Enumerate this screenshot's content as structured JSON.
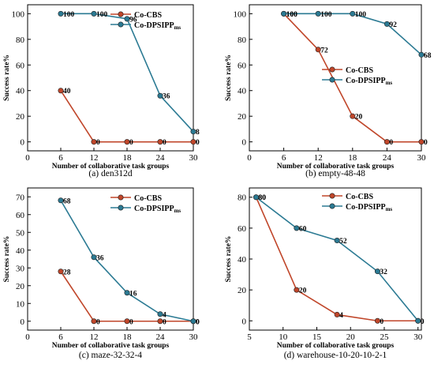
{
  "colors": {
    "co_cbs": "#c0462a",
    "co_dpsipp": "#2b7a93",
    "axis": "#000000"
  },
  "chart_data": [
    {
      "type": "line",
      "caption": "(a) den312d",
      "xlabel": "Number of collaborative task groups",
      "ylabel": "Success rate%",
      "xlim": [
        0,
        30
      ],
      "ylim": [
        -7,
        107
      ],
      "xticks": [
        0,
        6,
        12,
        18,
        24,
        30
      ],
      "yticks": [
        0,
        20,
        40,
        60,
        80,
        100
      ],
      "legend_position": "top-right",
      "series": [
        {
          "name": "Co-CBS",
          "x": [
            6,
            12,
            18,
            24,
            30
          ],
          "values": [
            40,
            0,
            0,
            0,
            0
          ],
          "labels": [
            "40",
            "0",
            "0",
            "0",
            "0"
          ]
        },
        {
          "name": "Co-DPSIPP",
          "name_sub": "ms",
          "x": [
            6,
            12,
            18,
            24,
            30
          ],
          "values": [
            100,
            100,
            96,
            36,
            8
          ],
          "labels": [
            "100",
            "100",
            "96",
            "36",
            "8"
          ]
        }
      ]
    },
    {
      "type": "line",
      "caption": "(b) empty-48-48",
      "xlabel": "Number of collaborative task groups",
      "ylabel": "Success rate%",
      "xlim": [
        0,
        30
      ],
      "ylim": [
        -7,
        107
      ],
      "xticks": [
        0,
        6,
        12,
        18,
        24,
        30
      ],
      "yticks": [
        0,
        20,
        40,
        60,
        80,
        100
      ],
      "legend_position": "center-right",
      "series": [
        {
          "name": "Co-CBS",
          "x": [
            6,
            12,
            18,
            24,
            30
          ],
          "values": [
            100,
            72,
            20,
            0,
            0
          ],
          "labels": [
            "100",
            "72",
            "20",
            "0",
            "0"
          ]
        },
        {
          "name": "Co-DPSIPP",
          "name_sub": "ms",
          "x": [
            6,
            12,
            18,
            24,
            30
          ],
          "values": [
            100,
            100,
            100,
            92,
            68
          ],
          "labels": [
            "100",
            "100",
            "100",
            "92",
            "68"
          ]
        }
      ]
    },
    {
      "type": "line",
      "caption": "(c) maze-32-32-4",
      "xlabel": "Number of collaborative task groups",
      "ylabel": "Success rate%",
      "xlim": [
        0,
        30
      ],
      "ylim": [
        -5,
        75
      ],
      "xticks": [
        0,
        6,
        12,
        18,
        24,
        30
      ],
      "yticks": [
        0,
        10,
        20,
        30,
        40,
        50,
        60,
        70
      ],
      "legend_position": "top-right",
      "series": [
        {
          "name": "Co-CBS",
          "x": [
            6,
            12,
            18,
            24,
            30
          ],
          "values": [
            28,
            0,
            0,
            0,
            0
          ],
          "labels": [
            "28",
            "0",
            "0",
            "0",
            "0"
          ]
        },
        {
          "name": "Co-DPSIPP",
          "name_sub": "ms",
          "x": [
            6,
            12,
            18,
            24,
            30
          ],
          "values": [
            68,
            36,
            16,
            4,
            0
          ],
          "labels": [
            "68",
            "36",
            "16",
            "4",
            "0"
          ]
        }
      ]
    },
    {
      "type": "line",
      "caption": "(d) warehouse-10-20-10-2-1",
      "xlabel": "Number of collaborative task groups",
      "ylabel": "Success rate%",
      "xlim": [
        5,
        30.5
      ],
      "ylim": [
        -6,
        86
      ],
      "xticks": [
        5,
        10,
        15,
        20,
        25,
        30
      ],
      "yticks": [
        0,
        20,
        40,
        60,
        80
      ],
      "legend_position": "top-right",
      "series": [
        {
          "name": "Co-CBS",
          "x": [
            6,
            12,
            18,
            24,
            30
          ],
          "values": [
            80,
            20,
            4,
            0,
            0
          ],
          "labels": [
            "80",
            "20",
            "4",
            "0",
            "0"
          ]
        },
        {
          "name": "Co-DPSIPP",
          "name_sub": "ms",
          "x": [
            6,
            12,
            18,
            24,
            30
          ],
          "values": [
            80,
            60,
            52,
            32,
            0
          ],
          "labels": [
            "80",
            "60",
            "52",
            "32",
            "0"
          ]
        }
      ]
    }
  ]
}
